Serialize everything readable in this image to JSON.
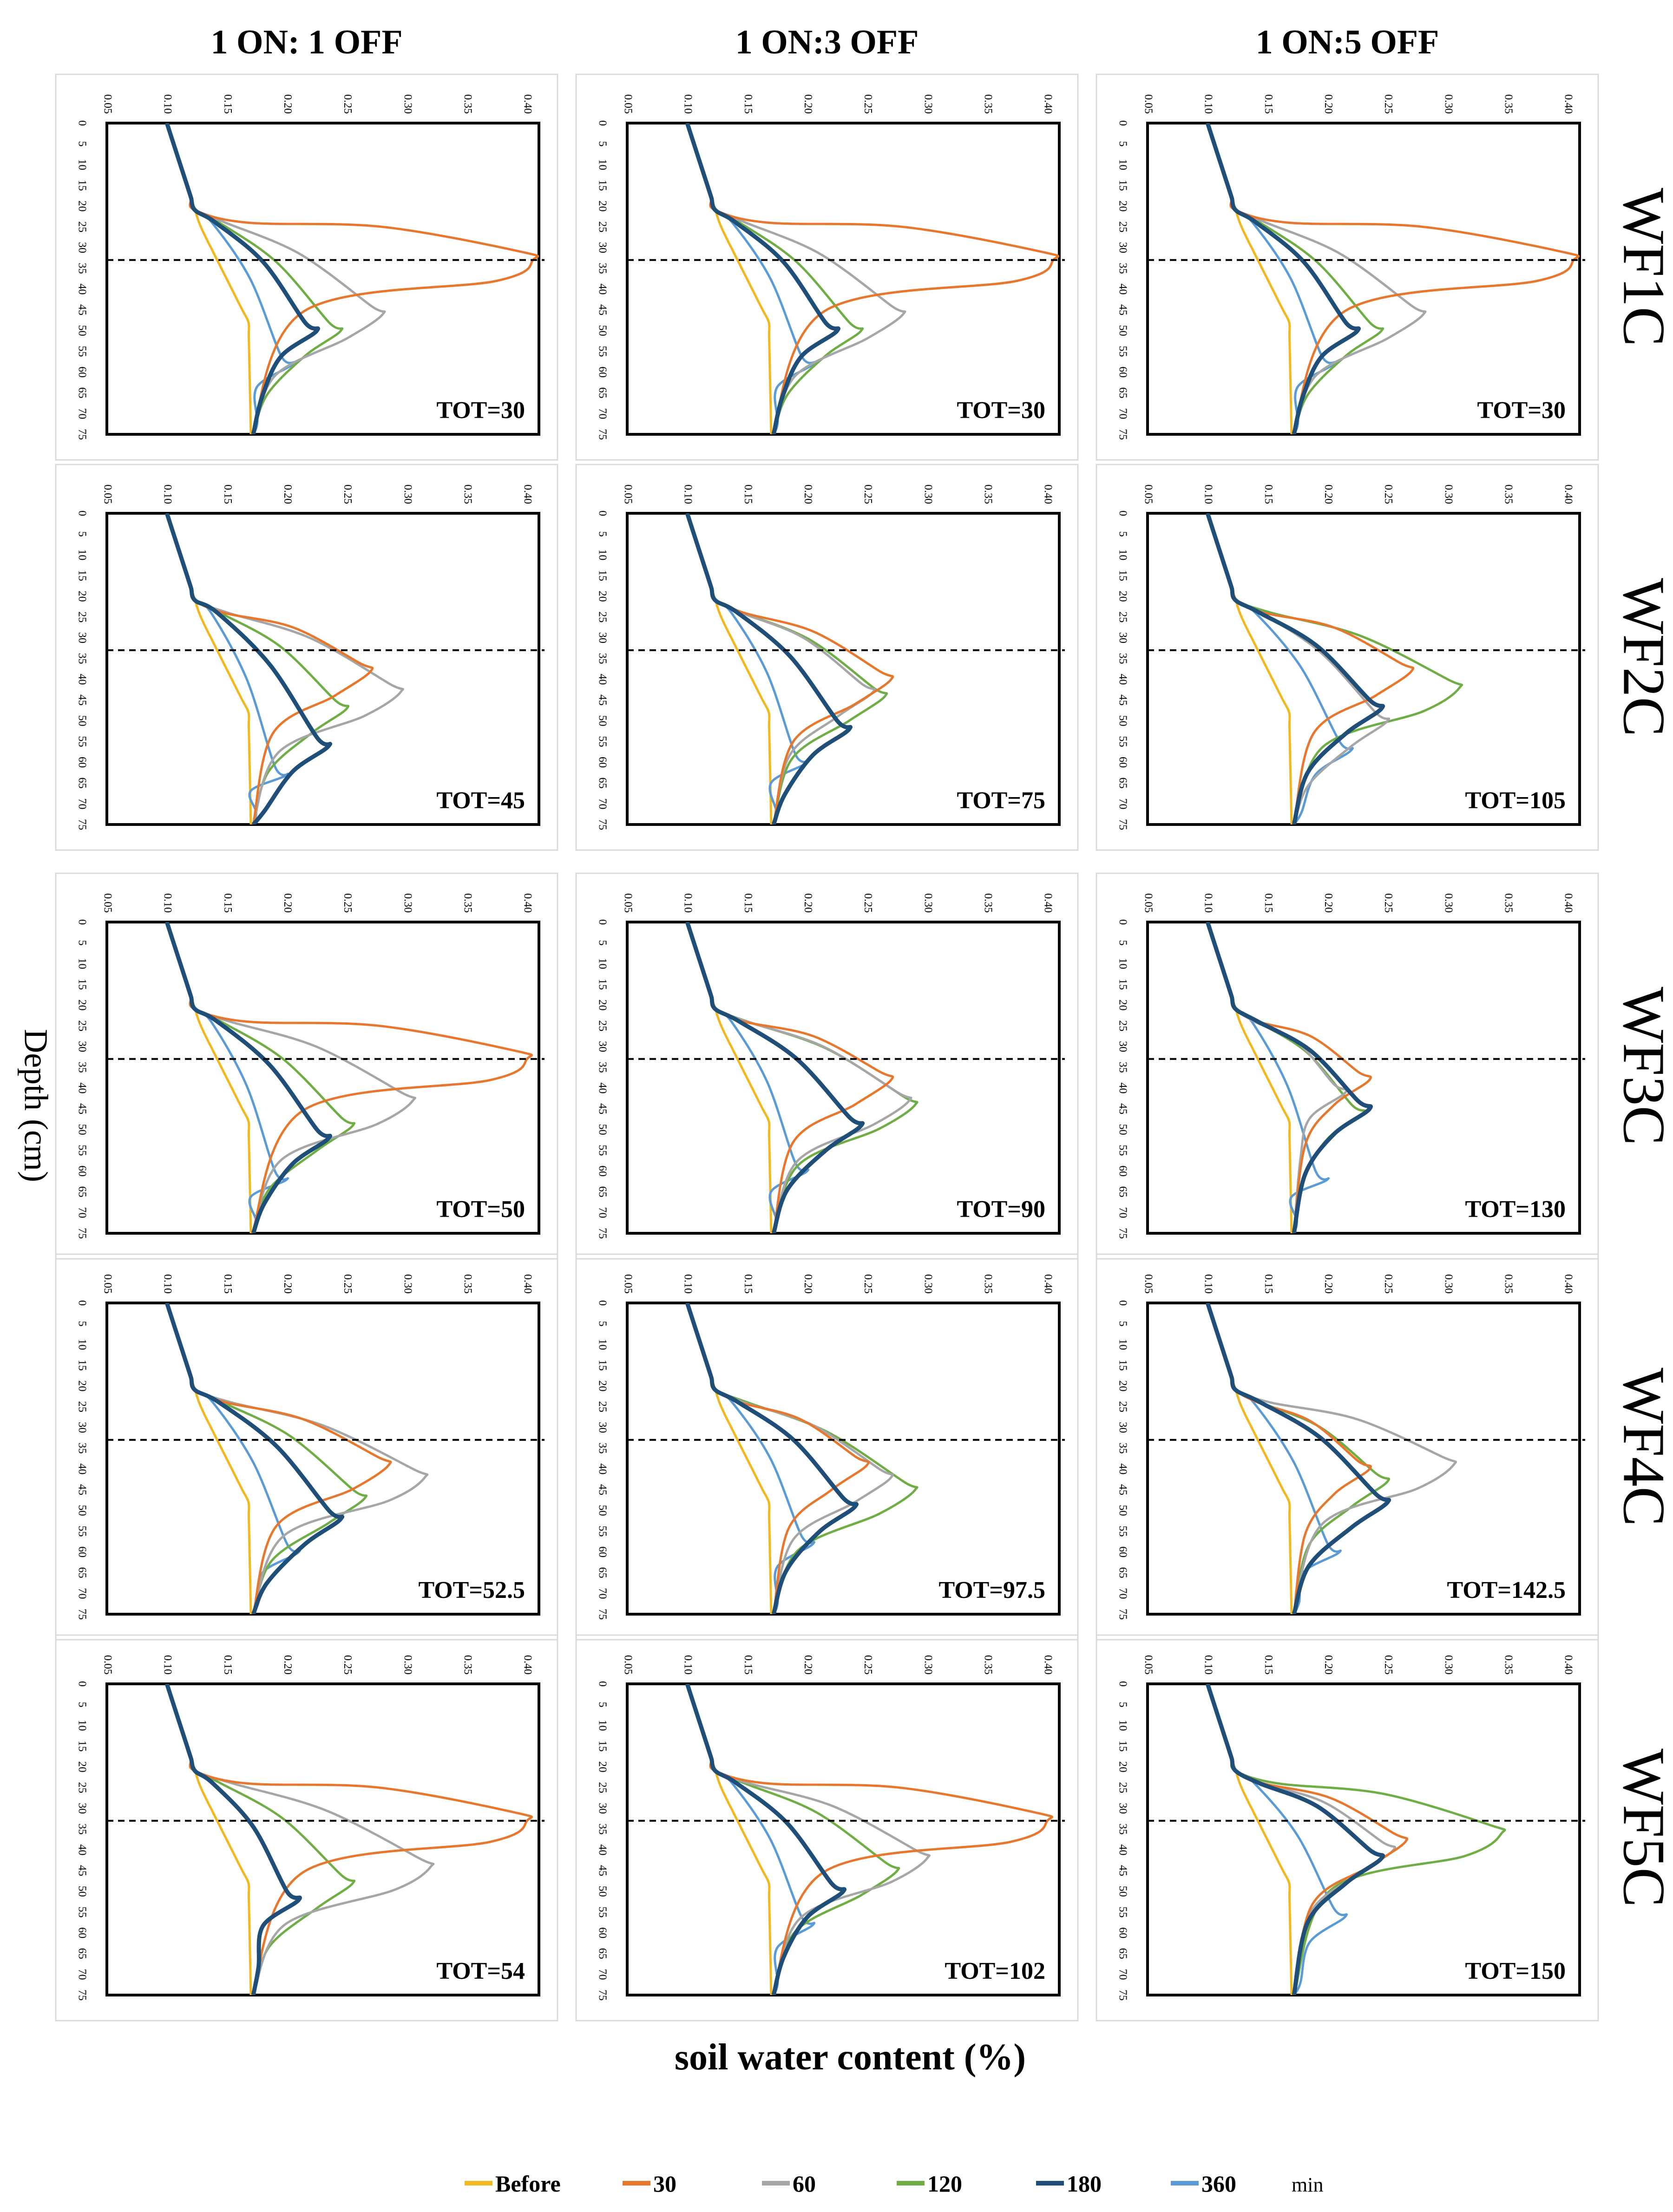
{
  "figure": {
    "column_titles": [
      "1 ON: 1 OFF",
      "1 ON:3 OFF",
      "1 ON:5 OFF"
    ],
    "row_labels": [
      "WF1C",
      "WF2C",
      "WF3C",
      "WF4C",
      "WF5C"
    ],
    "ylabel": "Depth (cm)",
    "xlabel": "soil water content (%)",
    "legend": {
      "items": [
        {
          "label": "Before",
          "color": "#F2B81F"
        },
        {
          "label": "30",
          "color": "#E8772E"
        },
        {
          "label": "60",
          "color": "#A6A6A6"
        },
        {
          "label": "120",
          "color": "#6FAE45"
        },
        {
          "label": "180",
          "color": "#1F4E79"
        },
        {
          "label": "360",
          "color": "#5B9BD5"
        }
      ],
      "unit": "min"
    }
  },
  "chart_data": {
    "type": "line",
    "x_ticks": [
      "0.05",
      "0.10",
      "0.15",
      "0.20",
      "0.25",
      "0.30",
      "0.35",
      "0.40"
    ],
    "y_ticks": [
      "0",
      "5",
      "10",
      "15",
      "20",
      "25",
      "30",
      "35",
      "40",
      "45",
      "50",
      "55",
      "60",
      "65",
      "70",
      "75"
    ],
    "xlim": [
      0.05,
      0.41
    ],
    "ylim": [
      0,
      75
    ],
    "reference_line_depth": 33,
    "series_names": [
      "Before",
      "30",
      "60",
      "120",
      "180",
      "360"
    ],
    "panels": [
      {
        "row": 0,
        "col": 0,
        "tot": "TOT=30",
        "peaks": {
          "30": [
            0.405,
            33
          ],
          "60": [
            0.28,
            46
          ],
          "120": [
            0.245,
            50
          ],
          "180": [
            0.225,
            50
          ],
          "360": [
            0.205,
            58
          ]
        }
      },
      {
        "row": 0,
        "col": 1,
        "tot": "TOT=30",
        "peaks": {
          "30": [
            0.405,
            33
          ],
          "60": [
            0.28,
            46
          ],
          "120": [
            0.245,
            50
          ],
          "180": [
            0.225,
            50
          ],
          "360": [
            0.205,
            58
          ]
        }
      },
      {
        "row": 0,
        "col": 2,
        "tot": "TOT=30",
        "peaks": {
          "30": [
            0.405,
            33
          ],
          "60": [
            0.28,
            46
          ],
          "120": [
            0.245,
            50
          ],
          "180": [
            0.225,
            50
          ],
          "360": [
            0.205,
            58
          ]
        }
      },
      {
        "row": 1,
        "col": 0,
        "tot": "TOT=45",
        "peaks": {
          "30": [
            0.27,
            38
          ],
          "60": [
            0.295,
            43
          ],
          "120": [
            0.25,
            47
          ],
          "180": [
            0.235,
            56
          ],
          "360": [
            0.2,
            63
          ]
        }
      },
      {
        "row": 1,
        "col": 1,
        "tot": "TOT=75",
        "peaks": {
          "30": [
            0.27,
            40
          ],
          "60": [
            0.255,
            43
          ],
          "120": [
            0.265,
            44
          ],
          "180": [
            0.235,
            52
          ],
          "360": [
            0.2,
            60
          ]
        }
      },
      {
        "row": 1,
        "col": 2,
        "tot": "TOT=105",
        "peaks": {
          "30": [
            0.27,
            38
          ],
          "60": [
            0.25,
            50
          ],
          "120": [
            0.31,
            42
          ],
          "180": [
            0.245,
            47
          ],
          "360": [
            0.22,
            57
          ]
        }
      },
      {
        "row": 2,
        "col": 0,
        "tot": "TOT=50",
        "peaks": {
          "30": [
            0.4,
            33
          ],
          "60": [
            0.305,
            43
          ],
          "120": [
            0.255,
            49
          ],
          "180": [
            0.235,
            52
          ],
          "360": [
            0.2,
            62
          ]
        }
      },
      {
        "row": 2,
        "col": 1,
        "tot": "TOT=90",
        "peaks": {
          "30": [
            0.27,
            38
          ],
          "60": [
            0.285,
            43
          ],
          "120": [
            0.29,
            44
          ],
          "180": [
            0.245,
            49
          ],
          "360": [
            0.2,
            60
          ]
        }
      },
      {
        "row": 2,
        "col": 2,
        "tot": "TOT=130",
        "peaks": {
          "30": [
            0.235,
            38
          ],
          "60": [
            0.215,
            41
          ],
          "120": [
            0.23,
            46
          ],
          "180": [
            0.235,
            45
          ],
          "360": [
            0.2,
            62
          ]
        }
      },
      {
        "row": 3,
        "col": 0,
        "tot": "TOT=52.5",
        "peaks": {
          "30": [
            0.285,
            39
          ],
          "60": [
            0.315,
            42
          ],
          "120": [
            0.265,
            47
          ],
          "180": [
            0.245,
            52
          ],
          "360": [
            0.21,
            60
          ]
        }
      },
      {
        "row": 3,
        "col": 1,
        "tot": "TOT=97.5",
        "peaks": {
          "30": [
            0.25,
            39
          ],
          "60": [
            0.27,
            42
          ],
          "120": [
            0.29,
            45
          ],
          "180": [
            0.24,
            49
          ],
          "360": [
            0.205,
            58
          ]
        }
      },
      {
        "row": 3,
        "col": 2,
        "tot": "TOT=142.5",
        "peaks": {
          "30": [
            0.235,
            40
          ],
          "60": [
            0.305,
            39
          ],
          "120": [
            0.25,
            43
          ],
          "180": [
            0.25,
            48
          ],
          "360": [
            0.21,
            60
          ]
        }
      },
      {
        "row": 4,
        "col": 0,
        "tot": "TOT=54",
        "peaks": {
          "30": [
            0.4,
            33
          ],
          "60": [
            0.32,
            44
          ],
          "120": [
            0.255,
            48
          ],
          "180": [
            0.21,
            52
          ],
          "360": [
            0.21,
            52
          ]
        }
      },
      {
        "row": 4,
        "col": 1,
        "tot": "TOT=102",
        "peaks": {
          "30": [
            0.4,
            33
          ],
          "60": [
            0.3,
            42
          ],
          "120": [
            0.275,
            45
          ],
          "180": [
            0.23,
            50
          ],
          "360": [
            0.205,
            58
          ]
        }
      },
      {
        "row": 4,
        "col": 2,
        "tot": "TOT=150",
        "peaks": {
          "30": [
            0.265,
            38
          ],
          "60": [
            0.255,
            40
          ],
          "120": [
            0.345,
            36
          ],
          "180": [
            0.245,
            42
          ],
          "360": [
            0.215,
            56
          ]
        }
      }
    ]
  }
}
